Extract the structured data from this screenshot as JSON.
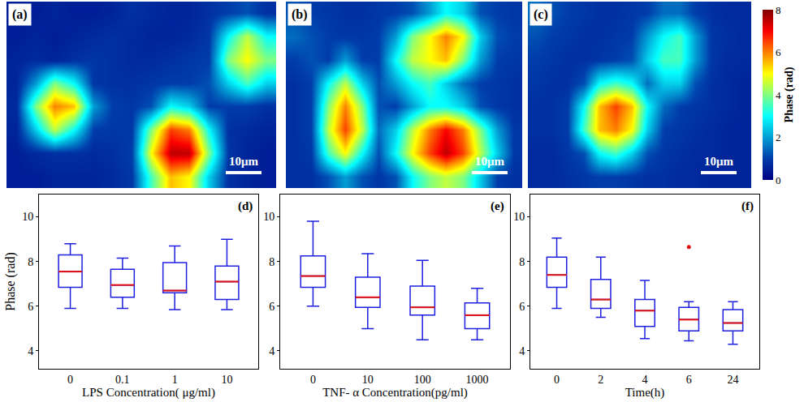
{
  "chart_data": [
    {
      "type": "heatmap",
      "panel": "(a)",
      "scale_bar": "10μm",
      "tick_labels": false,
      "zlim": [
        0,
        8
      ],
      "cells": [
        [
          0.5,
          0.5,
          0.6,
          0.5,
          0.5,
          0.6,
          0.8,
          0.7,
          0.6,
          0.6,
          0.8,
          1.0,
          1.2,
          0.8
        ],
        [
          0.5,
          0.6,
          0.5,
          0.6,
          0.7,
          0.8,
          0.7,
          0.6,
          0.6,
          0.7,
          0.9,
          3.0,
          4.5,
          3.0
        ],
        [
          0.6,
          0.7,
          0.6,
          0.8,
          0.9,
          0.8,
          0.7,
          0.7,
          0.8,
          0.9,
          1.0,
          4.0,
          5.0,
          4.0
        ],
        [
          0.6,
          2.0,
          4.0,
          3.0,
          0.9,
          0.8,
          0.8,
          0.9,
          1.0,
          1.0,
          1.2,
          2.5,
          3.5,
          2.5
        ],
        [
          0.7,
          4.0,
          6.0,
          5.5,
          2.0,
          1.0,
          0.9,
          1.2,
          3.0,
          2.5,
          1.0,
          1.0,
          1.0,
          0.8
        ],
        [
          0.6,
          2.5,
          4.5,
          3.0,
          1.0,
          0.9,
          0.9,
          4.0,
          6.5,
          6.0,
          3.0,
          0.8,
          0.7,
          0.6
        ],
        [
          0.5,
          0.7,
          0.8,
          0.8,
          0.7,
          0.8,
          1.0,
          5.0,
          7.5,
          7.5,
          4.0,
          0.9,
          0.6,
          0.5
        ],
        [
          0.5,
          0.5,
          0.6,
          0.6,
          0.6,
          0.7,
          0.9,
          3.5,
          5.5,
          5.0,
          2.5,
          0.8,
          0.6,
          0.5
        ]
      ]
    },
    {
      "type": "heatmap",
      "panel": "(b)",
      "scale_bar": "10μm",
      "tick_labels": false,
      "zlim": [
        0,
        8
      ],
      "cells": [
        [
          1.2,
          1.0,
          0.9,
          0.8,
          0.8,
          0.9,
          1.0,
          1.2,
          2.0,
          3.0,
          2.5,
          1.2,
          1.0,
          0.9
        ],
        [
          1.5,
          1.2,
          1.0,
          0.9,
          0.9,
          1.0,
          2.0,
          4.0,
          5.0,
          6.0,
          5.0,
          2.5,
          1.2,
          1.0
        ],
        [
          1.0,
          1.2,
          1.0,
          2.0,
          1.0,
          1.0,
          3.0,
          4.5,
          5.0,
          5.5,
          4.0,
          2.0,
          1.0,
          0.9
        ],
        [
          0.8,
          1.0,
          3.0,
          4.5,
          2.5,
          1.2,
          2.0,
          3.0,
          3.5,
          2.5,
          1.5,
          1.0,
          0.9,
          0.8
        ],
        [
          0.8,
          1.0,
          4.0,
          6.0,
          4.0,
          1.2,
          1.0,
          2.0,
          3.0,
          3.0,
          2.5,
          1.2,
          0.9,
          0.8
        ],
        [
          0.8,
          1.0,
          4.5,
          6.5,
          4.5,
          1.5,
          2.5,
          4.5,
          6.0,
          7.0,
          6.0,
          4.0,
          2.0,
          0.9
        ],
        [
          0.8,
          0.9,
          3.5,
          5.0,
          3.0,
          1.2,
          3.0,
          5.0,
          6.5,
          7.5,
          6.5,
          4.5,
          2.5,
          0.9
        ],
        [
          0.8,
          0.8,
          1.2,
          2.0,
          1.2,
          0.9,
          1.2,
          3.0,
          4.0,
          4.5,
          4.0,
          2.5,
          1.0,
          0.8
        ]
      ]
    },
    {
      "type": "heatmap",
      "panel": "(c)",
      "scale_bar": "10μm",
      "tick_labels": false,
      "zlim": [
        0,
        8
      ],
      "zticks": [
        0,
        2,
        4,
        6,
        8
      ],
      "colorbar_title": "Phase (rad)",
      "cells": [
        [
          1.5,
          1.2,
          1.0,
          0.9,
          0.8,
          0.8,
          0.9,
          1.0,
          1.5,
          1.5,
          1.0,
          0.8,
          0.7,
          0.7
        ],
        [
          1.2,
          1.0,
          0.9,
          0.8,
          0.8,
          0.9,
          1.0,
          2.0,
          3.0,
          3.5,
          2.0,
          0.9,
          0.8,
          0.7
        ],
        [
          1.0,
          0.9,
          0.8,
          0.8,
          0.9,
          1.0,
          1.2,
          2.5,
          3.5,
          3.5,
          2.0,
          0.9,
          0.7,
          0.7
        ],
        [
          0.9,
          0.8,
          0.8,
          1.2,
          3.0,
          3.5,
          3.0,
          1.5,
          2.5,
          2.5,
          1.2,
          0.8,
          0.7,
          0.6
        ],
        [
          0.8,
          0.8,
          1.0,
          3.0,
          5.5,
          6.5,
          5.5,
          3.0,
          1.5,
          1.0,
          0.9,
          0.8,
          0.7,
          0.6
        ],
        [
          0.8,
          0.8,
          1.0,
          3.5,
          5.5,
          6.0,
          5.0,
          2.5,
          1.0,
          0.9,
          0.8,
          0.7,
          0.6,
          0.6
        ],
        [
          0.7,
          0.7,
          0.9,
          1.2,
          3.0,
          3.5,
          2.5,
          1.2,
          0.9,
          0.8,
          0.7,
          0.7,
          0.6,
          0.6
        ],
        [
          0.7,
          0.7,
          0.8,
          0.9,
          1.0,
          1.0,
          0.9,
          0.8,
          0.8,
          0.7,
          0.7,
          0.6,
          0.6,
          0.6
        ]
      ]
    },
    {
      "type": "box",
      "panel": "(d)",
      "x_label": "LPS Concentration( μg/ml)",
      "y_label": "Phase (rad)",
      "categories": [
        "0",
        "0.1",
        "1",
        "10"
      ],
      "lower_whisker": [
        5.9,
        5.9,
        5.85,
        5.85
      ],
      "q1": [
        6.85,
        6.4,
        6.6,
        6.3
      ],
      "median": [
        7.55,
        6.95,
        6.7,
        7.1
      ],
      "q3": [
        8.3,
        7.65,
        7.95,
        7.8
      ],
      "upper_whisker": [
        8.8,
        8.15,
        8.7,
        9.0
      ],
      "outliers": [
        [],
        [],
        [],
        []
      ],
      "ylim": [
        3.2,
        11
      ],
      "yticks": [
        4,
        6,
        8,
        10
      ]
    },
    {
      "type": "box",
      "panel": "(e)",
      "x_label": "TNF- α Concentration(pg/ml)",
      "categories": [
        "0",
        "10",
        "100",
        "1000"
      ],
      "lower_whisker": [
        6.0,
        5.0,
        4.5,
        4.5
      ],
      "q1": [
        6.85,
        5.95,
        5.6,
        5.0
      ],
      "median": [
        7.35,
        6.4,
        5.95,
        5.6
      ],
      "q3": [
        8.25,
        7.3,
        6.9,
        6.15
      ],
      "upper_whisker": [
        9.8,
        8.35,
        8.05,
        6.8
      ],
      "outliers": [
        [],
        [],
        [],
        []
      ],
      "ylim": [
        3.2,
        11
      ],
      "yticks": [
        4,
        6,
        8,
        10
      ]
    },
    {
      "type": "box",
      "panel": "(f)",
      "x_label": "Time(h)",
      "categories": [
        "0",
        "2",
        "4",
        "6",
        "24"
      ],
      "lower_whisker": [
        5.9,
        5.5,
        4.55,
        4.45,
        4.3
      ],
      "q1": [
        6.85,
        5.9,
        5.1,
        4.9,
        4.9
      ],
      "median": [
        7.4,
        6.3,
        5.8,
        5.4,
        5.25
      ],
      "q3": [
        8.2,
        7.2,
        6.3,
        5.95,
        5.85
      ],
      "upper_whisker": [
        9.05,
        8.2,
        7.15,
        6.2,
        6.2
      ],
      "outliers": [
        [],
        [],
        [],
        [
          8.65
        ],
        []
      ],
      "ylim": [
        3.2,
        11
      ],
      "yticks": [
        4,
        6,
        8,
        10
      ]
    }
  ]
}
